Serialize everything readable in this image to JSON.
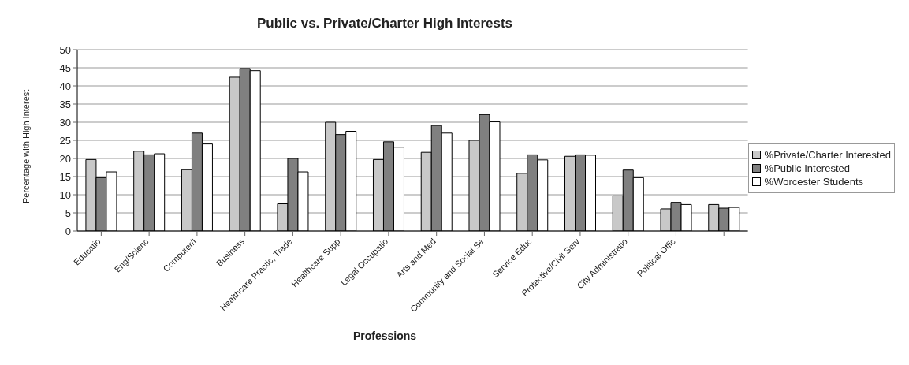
{
  "chart_data": {
    "type": "bar",
    "title": "Public vs. Private/Charter High Interests",
    "xlabel": "Professions",
    "ylabel": "Percentage with High Interest",
    "categories": [
      "Educatio",
      "Eng/Scienc",
      "Computer/I",
      "Business",
      "Healthcare Practic, Trade",
      "Healthcare Supp",
      "Legal Occupatio",
      "Arts and Med",
      "Community and Social Se",
      "Service Educ",
      "Protective/Civil Serv",
      "City Administratio",
      "Political Offic",
      null
    ],
    "series": [
      {
        "name": "%Private/Charter Interested",
        "color": "#c8c8c8",
        "values": [
          19.7,
          22,
          16.9,
          42.4,
          7.5,
          30,
          19.7,
          21.7,
          25,
          15.9,
          20.6,
          9.7,
          6.1,
          7.3
        ]
      },
      {
        "name": "%Public Interested",
        "color": "#808080",
        "values": [
          14.7,
          21,
          27,
          44.8,
          20,
          26.6,
          24.6,
          29.1,
          32.1,
          21,
          21,
          16.8,
          7.9,
          6.3
        ]
      },
      {
        "name": "%Worcester Students",
        "color": "#ffffff",
        "values": [
          16.3,
          21.3,
          24,
          44.2,
          16.3,
          27.5,
          23.1,
          27,
          30.1,
          19.6,
          20.9,
          14.7,
          7.3,
          6.5
        ]
      }
    ],
    "ylim": [
      0,
      50
    ],
    "yticks": [
      0,
      5,
      10,
      15,
      20,
      25,
      30,
      35,
      40,
      45,
      50
    ],
    "grid": "y",
    "legend": "right"
  }
}
